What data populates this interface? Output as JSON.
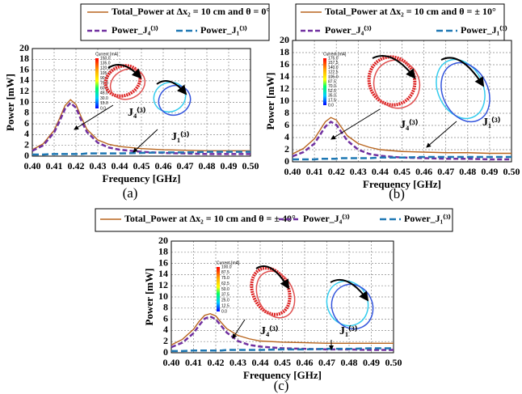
{
  "chart_data": [
    {
      "type": "line",
      "panel_label": "(a)",
      "x": [
        0.4,
        0.405,
        0.41,
        0.4125,
        0.415,
        0.4175,
        0.42,
        0.4225,
        0.425,
        0.43,
        0.435,
        0.44,
        0.45,
        0.46,
        0.47,
        0.48,
        0.49,
        0.5
      ],
      "series": [
        {
          "name": "Total_Power at Δx₂ = 10 cm and θ  = 0°",
          "color": "#b8651e",
          "values": [
            1.2,
            2.3,
            4.8,
            7.0,
            9.4,
            10.5,
            9.6,
            7.2,
            5.0,
            3.0,
            2.2,
            1.8,
            1.4,
            1.2,
            1.1,
            1.0,
            1.0,
            1.0
          ]
        },
        {
          "name": "Power_J₄⁽³⁾",
          "color": "#7030a0",
          "values": [
            1.0,
            2.0,
            4.4,
            6.5,
            8.8,
            9.9,
            9.0,
            6.6,
            4.5,
            2.5,
            1.6,
            1.2,
            0.8,
            0.6,
            0.5,
            0.4,
            0.4,
            0.4
          ]
        },
        {
          "name": "Power_J₁⁽³⁾",
          "color": "#1f78b4",
          "values": [
            0.3,
            0.3,
            0.4,
            0.4,
            0.4,
            0.4,
            0.4,
            0.4,
            0.5,
            0.5,
            0.5,
            0.5,
            0.6,
            0.7,
            0.7,
            0.8,
            0.8,
            0.8
          ]
        }
      ],
      "xlabel": "Frequency [GHz]",
      "ylabel": "Power [mW]",
      "xlim": [
        0.4,
        0.5
      ],
      "ylim": [
        0,
        20
      ],
      "xticks": [
        {
          "value": 0.4,
          "label": "0.40"
        },
        0.41,
        0.42,
        0.43,
        0.44,
        0.45,
        0.46,
        0.47,
        0.48,
        0.49,
        {
          "value": 0.5,
          "label": "0.50"
        }
      ],
      "yticks": [
        0,
        2,
        4,
        6,
        8,
        10,
        12,
        14,
        16,
        18,
        20
      ],
      "grid": true,
      "annotations": [
        "J₄⁽³⁾",
        "J₁⁽³⁾"
      ],
      "colorbar": {
        "title": "Current [mA]",
        "labels": [
          "150.0",
          "135.0",
          "120.0",
          "105.0",
          "90.0",
          "75.0",
          "60.0",
          "45.0",
          "30.0",
          "15.0",
          "0.0"
        ]
      }
    },
    {
      "type": "line",
      "panel_label": "(b)",
      "x": [
        0.4,
        0.405,
        0.41,
        0.4125,
        0.415,
        0.4175,
        0.42,
        0.4225,
        0.425,
        0.43,
        0.435,
        0.44,
        0.45,
        0.46,
        0.47,
        0.48,
        0.49,
        0.5
      ],
      "series": [
        {
          "name": "Total_Power at Δx₂ = 10 cm and θ  = ± 10°",
          "color": "#b8651e",
          "values": [
            1.3,
            2.2,
            3.8,
            5.2,
            6.6,
            7.3,
            6.9,
            5.6,
            4.3,
            3.0,
            2.4,
            2.0,
            1.7,
            1.6,
            1.5,
            1.5,
            1.4,
            1.4
          ]
        },
        {
          "name": "Power_J₄⁽³⁾",
          "color": "#7030a0",
          "values": [
            0.9,
            1.6,
            3.0,
            4.4,
            5.8,
            6.6,
            6.1,
            4.8,
            3.5,
            2.0,
            1.3,
            1.0,
            0.7,
            0.6,
            0.5,
            0.5,
            0.4,
            0.4
          ]
        },
        {
          "name": "Power_J₁⁽³⁾",
          "color": "#1f78b4",
          "values": [
            0.4,
            0.4,
            0.4,
            0.5,
            0.5,
            0.5,
            0.5,
            0.6,
            0.6,
            0.6,
            0.6,
            0.7,
            0.7,
            0.8,
            0.8,
            0.8,
            0.8,
            0.8
          ]
        }
      ],
      "xlabel": "Frequency [GHz]",
      "ylabel": "Power [mW]",
      "xlim": [
        0.4,
        0.5
      ],
      "ylim": [
        0,
        20
      ],
      "xticks": [
        {
          "value": 0.4,
          "label": "0.40"
        },
        0.41,
        0.42,
        0.43,
        0.44,
        0.45,
        0.46,
        0.47,
        0.48,
        0.49,
        {
          "value": 0.5,
          "label": "0.50"
        }
      ],
      "yticks": [
        0,
        2,
        4,
        6,
        8,
        10,
        12,
        14,
        16,
        18,
        20
      ],
      "grid": true,
      "annotations": [
        "J₄⁽³⁾",
        "J₁⁽³⁾"
      ],
      "colorbar": {
        "title": "Current [mA]",
        "labels": [
          "175.0",
          "157.5",
          "140.0",
          "122.5",
          "105.0",
          "87.5",
          "70.0",
          "52.5",
          "35.0",
          "17.5",
          "0.0"
        ]
      }
    },
    {
      "type": "line",
      "panel_label": "(c)",
      "x": [
        0.4,
        0.405,
        0.41,
        0.4125,
        0.415,
        0.4175,
        0.42,
        0.4225,
        0.425,
        0.43,
        0.435,
        0.44,
        0.45,
        0.46,
        0.47,
        0.48,
        0.49,
        0.5
      ],
      "series": [
        {
          "name": "Total_Power at Δx₂ = 10 cm and θ  = ± 40°",
          "color": "#b8651e",
          "values": [
            1.4,
            2.4,
            4.2,
            5.6,
            6.7,
            7.0,
            6.6,
            5.4,
            4.3,
            3.1,
            2.5,
            2.1,
            1.9,
            1.8,
            1.7,
            1.7,
            1.7,
            1.7
          ]
        },
        {
          "name": "Power_J₄⁽³⁾",
          "color": "#7030a0",
          "values": [
            1.0,
            1.8,
            3.5,
            4.9,
            6.1,
            6.5,
            6.0,
            4.8,
            3.6,
            2.1,
            1.4,
            1.1,
            0.8,
            0.7,
            0.6,
            0.6,
            0.5,
            0.5
          ]
        },
        {
          "name": "Power_J₁⁽³⁾",
          "color": "#1f78b4",
          "values": [
            0.3,
            0.3,
            0.4,
            0.4,
            0.4,
            0.4,
            0.4,
            0.4,
            0.5,
            0.5,
            0.5,
            0.5,
            0.6,
            0.6,
            0.7,
            0.7,
            0.8,
            0.8
          ]
        }
      ],
      "xlabel": "Frequency [GHz]",
      "ylabel": "Power [mW]",
      "xlim": [
        0.4,
        0.5
      ],
      "ylim": [
        0,
        20
      ],
      "xticks": [
        {
          "value": 0.4,
          "label": "0.40"
        },
        0.41,
        0.42,
        0.43,
        0.44,
        0.45,
        0.46,
        0.47,
        0.48,
        0.49,
        {
          "value": 0.5,
          "label": "0.50"
        }
      ],
      "yticks": [
        0,
        2,
        4,
        6,
        8,
        10,
        12,
        14,
        16,
        18,
        20
      ],
      "grid": true,
      "annotations": [
        "J₄⁽³⁾",
        "J₁⁽³⁾"
      ],
      "colorbar": {
        "title": "Current [mA]",
        "labels": [
          "100.0",
          "87.5",
          "75.0",
          "62.5",
          "50.0",
          "37.5",
          "25.0",
          "12.5",
          "0.0"
        ]
      }
    }
  ]
}
